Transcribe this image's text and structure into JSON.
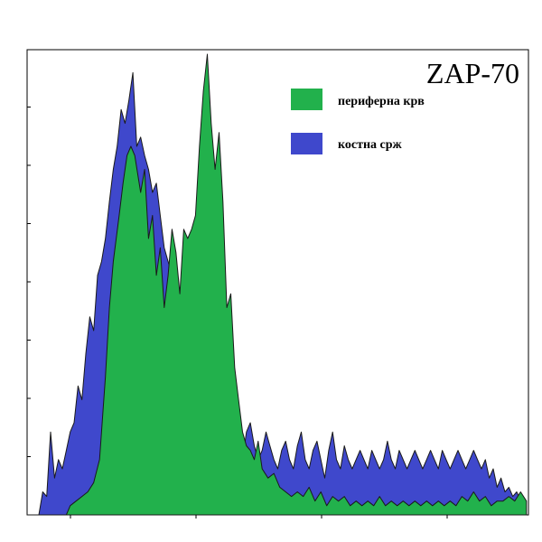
{
  "chart_data": {
    "type": "area",
    "title": "ZAP-70",
    "xlabel": "",
    "ylabel": "",
    "xlim": [
      0,
      256
    ],
    "ylim": [
      0,
      100
    ],
    "grid": false,
    "legend_position": "top-right",
    "series": [
      {
        "name": "периферна крв",
        "color": "#22b14c",
        "x": [
          0,
          20,
          22,
          25,
          28,
          31,
          34,
          37,
          40,
          42,
          44,
          47,
          49,
          51,
          53,
          55,
          58,
          60,
          62,
          64,
          66,
          68,
          70,
          72,
          74,
          76,
          78,
          80,
          82,
          84,
          86,
          88,
          90,
          92,
          94,
          96,
          98,
          100,
          102,
          104,
          106,
          108,
          110,
          112,
          114,
          116,
          118,
          120,
          123,
          126,
          129,
          132,
          135,
          138,
          141,
          144,
          147,
          150,
          153,
          156,
          159,
          162,
          165,
          168,
          171,
          174,
          177,
          180,
          183,
          186,
          189,
          192,
          195,
          198,
          201,
          204,
          207,
          210,
          213,
          216,
          219,
          222,
          225,
          228,
          231,
          234,
          237,
          240,
          243,
          246,
          249,
          252,
          255
        ],
        "values": [
          0,
          0,
          2,
          3,
          4,
          5,
          7,
          12,
          30,
          45,
          55,
          65,
          72,
          78,
          80,
          78,
          70,
          75,
          60,
          65,
          52,
          58,
          45,
          52,
          62,
          57,
          48,
          62,
          60,
          62,
          65,
          80,
          92,
          100,
          85,
          75,
          83,
          68,
          45,
          48,
          32,
          25,
          18,
          15,
          14,
          12,
          16,
          10,
          8,
          9,
          6,
          5,
          4,
          5,
          4,
          6,
          3,
          5,
          2,
          4,
          3,
          4,
          2,
          3,
          2,
          3,
          2,
          4,
          2,
          3,
          2,
          3,
          2,
          3,
          2,
          3,
          2,
          3,
          2,
          3,
          2,
          4,
          3,
          5,
          3,
          4,
          2,
          3,
          3,
          4,
          3,
          5,
          3
        ]
      },
      {
        "name": "костна срж",
        "color": "#3f48cc",
        "x": [
          0,
          6,
          8,
          10,
          12,
          14,
          16,
          18,
          20,
          22,
          24,
          26,
          28,
          30,
          32,
          34,
          36,
          38,
          40,
          42,
          44,
          46,
          48,
          50,
          52,
          54,
          56,
          58,
          60,
          62,
          64,
          66,
          68,
          70,
          72,
          74,
          76,
          78,
          80,
          82,
          84,
          86,
          88,
          90,
          92,
          94,
          96,
          98,
          100,
          102,
          104,
          106,
          108,
          110,
          112,
          114,
          116,
          118,
          120,
          122,
          124,
          126,
          128,
          130,
          132,
          134,
          136,
          138,
          140,
          142,
          144,
          146,
          148,
          150,
          152,
          154,
          156,
          158,
          160,
          162,
          164,
          166,
          168,
          170,
          172,
          174,
          176,
          178,
          180,
          182,
          184,
          186,
          188,
          190,
          192,
          194,
          196,
          198,
          200,
          202,
          204,
          206,
          208,
          210,
          212,
          214,
          216,
          218,
          220,
          222,
          224,
          226,
          228,
          230,
          232,
          234,
          236,
          238,
          240,
          242,
          244,
          246,
          248,
          250,
          252,
          254
        ],
        "values": [
          0,
          0,
          5,
          4,
          18,
          8,
          12,
          10,
          14,
          18,
          20,
          28,
          25,
          35,
          43,
          40,
          52,
          55,
          60,
          68,
          75,
          80,
          88,
          85,
          90,
          96,
          80,
          82,
          78,
          75,
          70,
          72,
          65,
          58,
          55,
          52,
          48,
          42,
          38,
          35,
          30,
          25,
          20,
          18,
          15,
          14,
          12,
          18,
          22,
          20,
          16,
          12,
          10,
          12,
          18,
          20,
          15,
          12,
          14,
          18,
          15,
          12,
          10,
          14,
          16,
          12,
          10,
          15,
          18,
          12,
          10,
          14,
          16,
          12,
          8,
          14,
          18,
          12,
          10,
          15,
          12,
          10,
          12,
          14,
          12,
          10,
          14,
          12,
          10,
          12,
          16,
          12,
          10,
          14,
          12,
          10,
          12,
          14,
          12,
          10,
          12,
          14,
          12,
          10,
          14,
          12,
          10,
          12,
          14,
          12,
          10,
          12,
          14,
          12,
          10,
          12,
          8,
          10,
          6,
          8,
          5,
          6,
          4,
          5,
          3,
          2
        ]
      }
    ]
  }
}
